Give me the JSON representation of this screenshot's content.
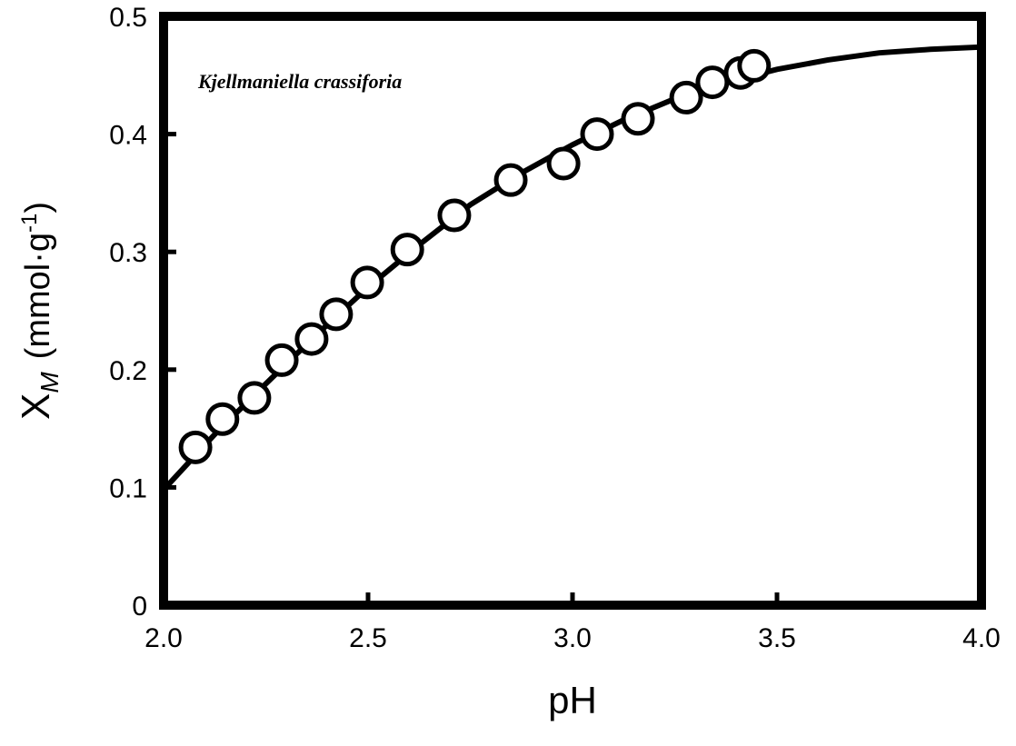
{
  "chart_data": {
    "type": "scatter",
    "annotation": "Kjellmaniella crassiforia",
    "x_label": "pH",
    "y_label": {
      "symbol": "X",
      "subscript": "M",
      "units": "(mmol·g",
      "superscript": "-1",
      "close": ")"
    },
    "xlim": [
      2.0,
      4.0
    ],
    "xticks": [
      {
        "value": 2.0,
        "label": "2.0"
      },
      2.5,
      {
        "value": 3.0,
        "label": "3.0"
      },
      3.5,
      {
        "value": 4.0,
        "label": "4.0"
      }
    ],
    "ylim": [
      0,
      0.5
    ],
    "yticks": [
      0,
      0.1,
      0.2,
      0.3,
      0.4,
      0.5
    ],
    "series": [
      {
        "type": "line",
        "color": "#000000",
        "x": [
          2.0,
          2.125,
          2.25,
          2.375,
          2.5,
          2.625,
          2.75,
          2.875,
          3.0,
          3.125,
          3.25,
          3.375,
          3.5,
          3.625,
          3.75,
          3.875,
          4.0
        ],
        "values": [
          0.098,
          0.145,
          0.188,
          0.23,
          0.27,
          0.306,
          0.34,
          0.367,
          0.391,
          0.412,
          0.43,
          0.444,
          0.455,
          0.463,
          0.469,
          0.472,
          0.474
        ]
      },
      {
        "type": "scatter",
        "color": "#000000",
        "x": [
          2.078,
          2.144,
          2.222,
          2.289,
          2.362,
          2.422,
          2.498,
          2.596,
          2.711,
          2.849,
          2.978,
          3.06,
          3.16,
          3.278,
          3.342,
          3.411,
          3.444
        ],
        "values": [
          0.134,
          0.158,
          0.176,
          0.208,
          0.226,
          0.247,
          0.274,
          0.302,
          0.331,
          0.361,
          0.375,
          0.4,
          0.413,
          0.431,
          0.444,
          0.452,
          0.458
        ]
      }
    ]
  }
}
